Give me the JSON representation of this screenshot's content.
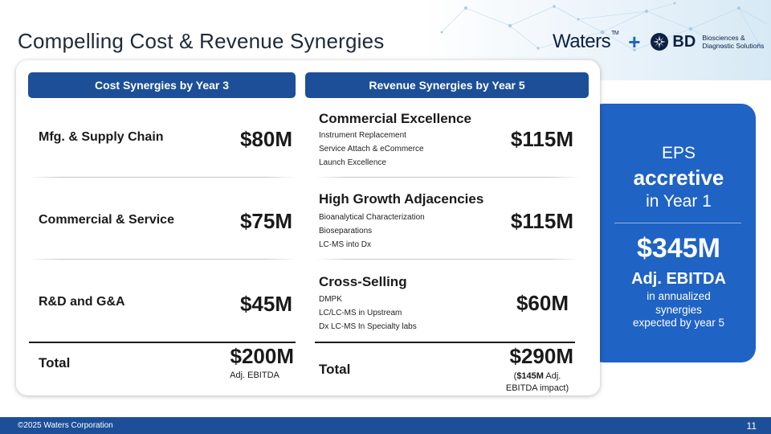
{
  "slide": {
    "title": "Compelling Cost & Revenue Synergies",
    "page_number": "11",
    "footer": "©2025 Waters Corporation"
  },
  "logos": {
    "waters": "Waters",
    "waters_tm": "TM",
    "plus": "+",
    "bd": "BD",
    "bd_sub_line1": "Biosciences &",
    "bd_sub_line2": "Diagnostic Solutions"
  },
  "cost": {
    "header": "Cost Synergies by Year 3",
    "rows": [
      {
        "label": "Mfg. & Supply Chain",
        "amount": "$80M"
      },
      {
        "label": "Commercial & Service",
        "amount": "$75M"
      },
      {
        "label": "R&D and G&A",
        "amount": "$45M"
      }
    ],
    "total_label": "Total",
    "total_amount": "$200M",
    "total_note": "Adj. EBITDA"
  },
  "revenue": {
    "header": "Revenue Synergies by Year 5",
    "sections": [
      {
        "title": "Commercial Excellence",
        "items": [
          "Instrument Replacement",
          "Service Attach & eCommerce",
          "Launch Excellence"
        ],
        "amount": "$115M"
      },
      {
        "title": "High Growth Adjacencies",
        "items": [
          "Bioanalytical Characterization",
          "Bioseparations",
          "LC-MS into Dx"
        ],
        "amount": "$115M"
      },
      {
        "title": "Cross-Selling",
        "items": [
          "DMPK",
          "LC/LC-MS in Upstream",
          "Dx LC-MS In Specialty labs"
        ],
        "amount": "$60M"
      }
    ],
    "total_label": "Total",
    "total_amount": "$290M",
    "total_note_prefix": "(",
    "total_note_bold": "$145M",
    "total_note_line1_rest": " Adj.",
    "total_note_line2": "EBITDA impact)"
  },
  "eps_panel": {
    "eps": "EPS",
    "accretive": "accretive",
    "in_year": "in Year 1",
    "amount": "$345M",
    "ebitda": "Adj. EBITDA",
    "desc_line1": "in annualized",
    "desc_line2": "synergies",
    "desc_line3": "expected by year 5",
    "panel_color": "#1f63c4"
  },
  "colors": {
    "header_blue": "#1d4f99",
    "accent_blue": "#1f62c6",
    "navy": "#0c1f45"
  }
}
